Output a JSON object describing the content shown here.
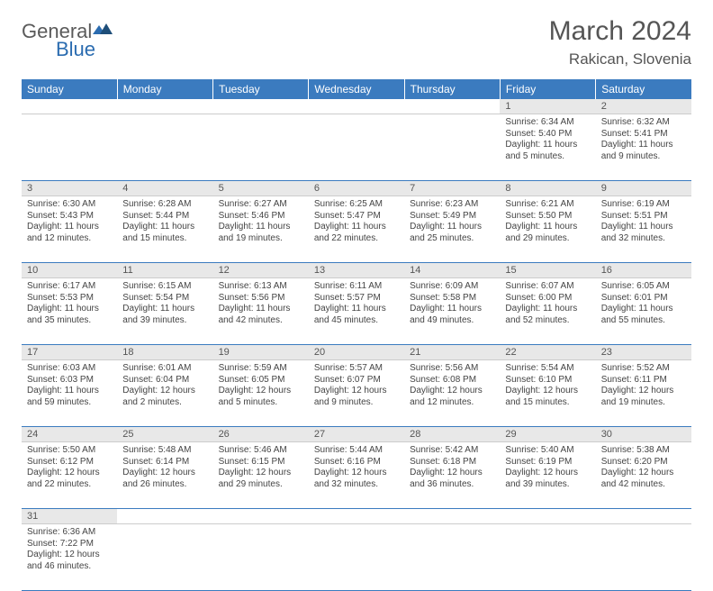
{
  "logo": {
    "text1": "General",
    "text2": "Blue"
  },
  "title": "March 2024",
  "location": "Rakican, Slovenia",
  "colors": {
    "header_bg": "#3b7bbf",
    "header_text": "#ffffff",
    "daynum_bg": "#e8e8e8",
    "border": "#3b7bbf",
    "text": "#444444",
    "title_text": "#555555"
  },
  "weekdays": [
    "Sunday",
    "Monday",
    "Tuesday",
    "Wednesday",
    "Thursday",
    "Friday",
    "Saturday"
  ],
  "weeks": [
    [
      null,
      null,
      null,
      null,
      null,
      {
        "n": "1",
        "sr": "6:34 AM",
        "ss": "5:40 PM",
        "dl": "11 hours and 5 minutes."
      },
      {
        "n": "2",
        "sr": "6:32 AM",
        "ss": "5:41 PM",
        "dl": "11 hours and 9 minutes."
      }
    ],
    [
      {
        "n": "3",
        "sr": "6:30 AM",
        "ss": "5:43 PM",
        "dl": "11 hours and 12 minutes."
      },
      {
        "n": "4",
        "sr": "6:28 AM",
        "ss": "5:44 PM",
        "dl": "11 hours and 15 minutes."
      },
      {
        "n": "5",
        "sr": "6:27 AM",
        "ss": "5:46 PM",
        "dl": "11 hours and 19 minutes."
      },
      {
        "n": "6",
        "sr": "6:25 AM",
        "ss": "5:47 PM",
        "dl": "11 hours and 22 minutes."
      },
      {
        "n": "7",
        "sr": "6:23 AM",
        "ss": "5:49 PM",
        "dl": "11 hours and 25 minutes."
      },
      {
        "n": "8",
        "sr": "6:21 AM",
        "ss": "5:50 PM",
        "dl": "11 hours and 29 minutes."
      },
      {
        "n": "9",
        "sr": "6:19 AM",
        "ss": "5:51 PM",
        "dl": "11 hours and 32 minutes."
      }
    ],
    [
      {
        "n": "10",
        "sr": "6:17 AM",
        "ss": "5:53 PM",
        "dl": "11 hours and 35 minutes."
      },
      {
        "n": "11",
        "sr": "6:15 AM",
        "ss": "5:54 PM",
        "dl": "11 hours and 39 minutes."
      },
      {
        "n": "12",
        "sr": "6:13 AM",
        "ss": "5:56 PM",
        "dl": "11 hours and 42 minutes."
      },
      {
        "n": "13",
        "sr": "6:11 AM",
        "ss": "5:57 PM",
        "dl": "11 hours and 45 minutes."
      },
      {
        "n": "14",
        "sr": "6:09 AM",
        "ss": "5:58 PM",
        "dl": "11 hours and 49 minutes."
      },
      {
        "n": "15",
        "sr": "6:07 AM",
        "ss": "6:00 PM",
        "dl": "11 hours and 52 minutes."
      },
      {
        "n": "16",
        "sr": "6:05 AM",
        "ss": "6:01 PM",
        "dl": "11 hours and 55 minutes."
      }
    ],
    [
      {
        "n": "17",
        "sr": "6:03 AM",
        "ss": "6:03 PM",
        "dl": "11 hours and 59 minutes."
      },
      {
        "n": "18",
        "sr": "6:01 AM",
        "ss": "6:04 PM",
        "dl": "12 hours and 2 minutes."
      },
      {
        "n": "19",
        "sr": "5:59 AM",
        "ss": "6:05 PM",
        "dl": "12 hours and 5 minutes."
      },
      {
        "n": "20",
        "sr": "5:57 AM",
        "ss": "6:07 PM",
        "dl": "12 hours and 9 minutes."
      },
      {
        "n": "21",
        "sr": "5:56 AM",
        "ss": "6:08 PM",
        "dl": "12 hours and 12 minutes."
      },
      {
        "n": "22",
        "sr": "5:54 AM",
        "ss": "6:10 PM",
        "dl": "12 hours and 15 minutes."
      },
      {
        "n": "23",
        "sr": "5:52 AM",
        "ss": "6:11 PM",
        "dl": "12 hours and 19 minutes."
      }
    ],
    [
      {
        "n": "24",
        "sr": "5:50 AM",
        "ss": "6:12 PM",
        "dl": "12 hours and 22 minutes."
      },
      {
        "n": "25",
        "sr": "5:48 AM",
        "ss": "6:14 PM",
        "dl": "12 hours and 26 minutes."
      },
      {
        "n": "26",
        "sr": "5:46 AM",
        "ss": "6:15 PM",
        "dl": "12 hours and 29 minutes."
      },
      {
        "n": "27",
        "sr": "5:44 AM",
        "ss": "6:16 PM",
        "dl": "12 hours and 32 minutes."
      },
      {
        "n": "28",
        "sr": "5:42 AM",
        "ss": "6:18 PM",
        "dl": "12 hours and 36 minutes."
      },
      {
        "n": "29",
        "sr": "5:40 AM",
        "ss": "6:19 PM",
        "dl": "12 hours and 39 minutes."
      },
      {
        "n": "30",
        "sr": "5:38 AM",
        "ss": "6:20 PM",
        "dl": "12 hours and 42 minutes."
      }
    ],
    [
      {
        "n": "31",
        "sr": "6:36 AM",
        "ss": "7:22 PM",
        "dl": "12 hours and 46 minutes."
      },
      null,
      null,
      null,
      null,
      null,
      null
    ]
  ]
}
